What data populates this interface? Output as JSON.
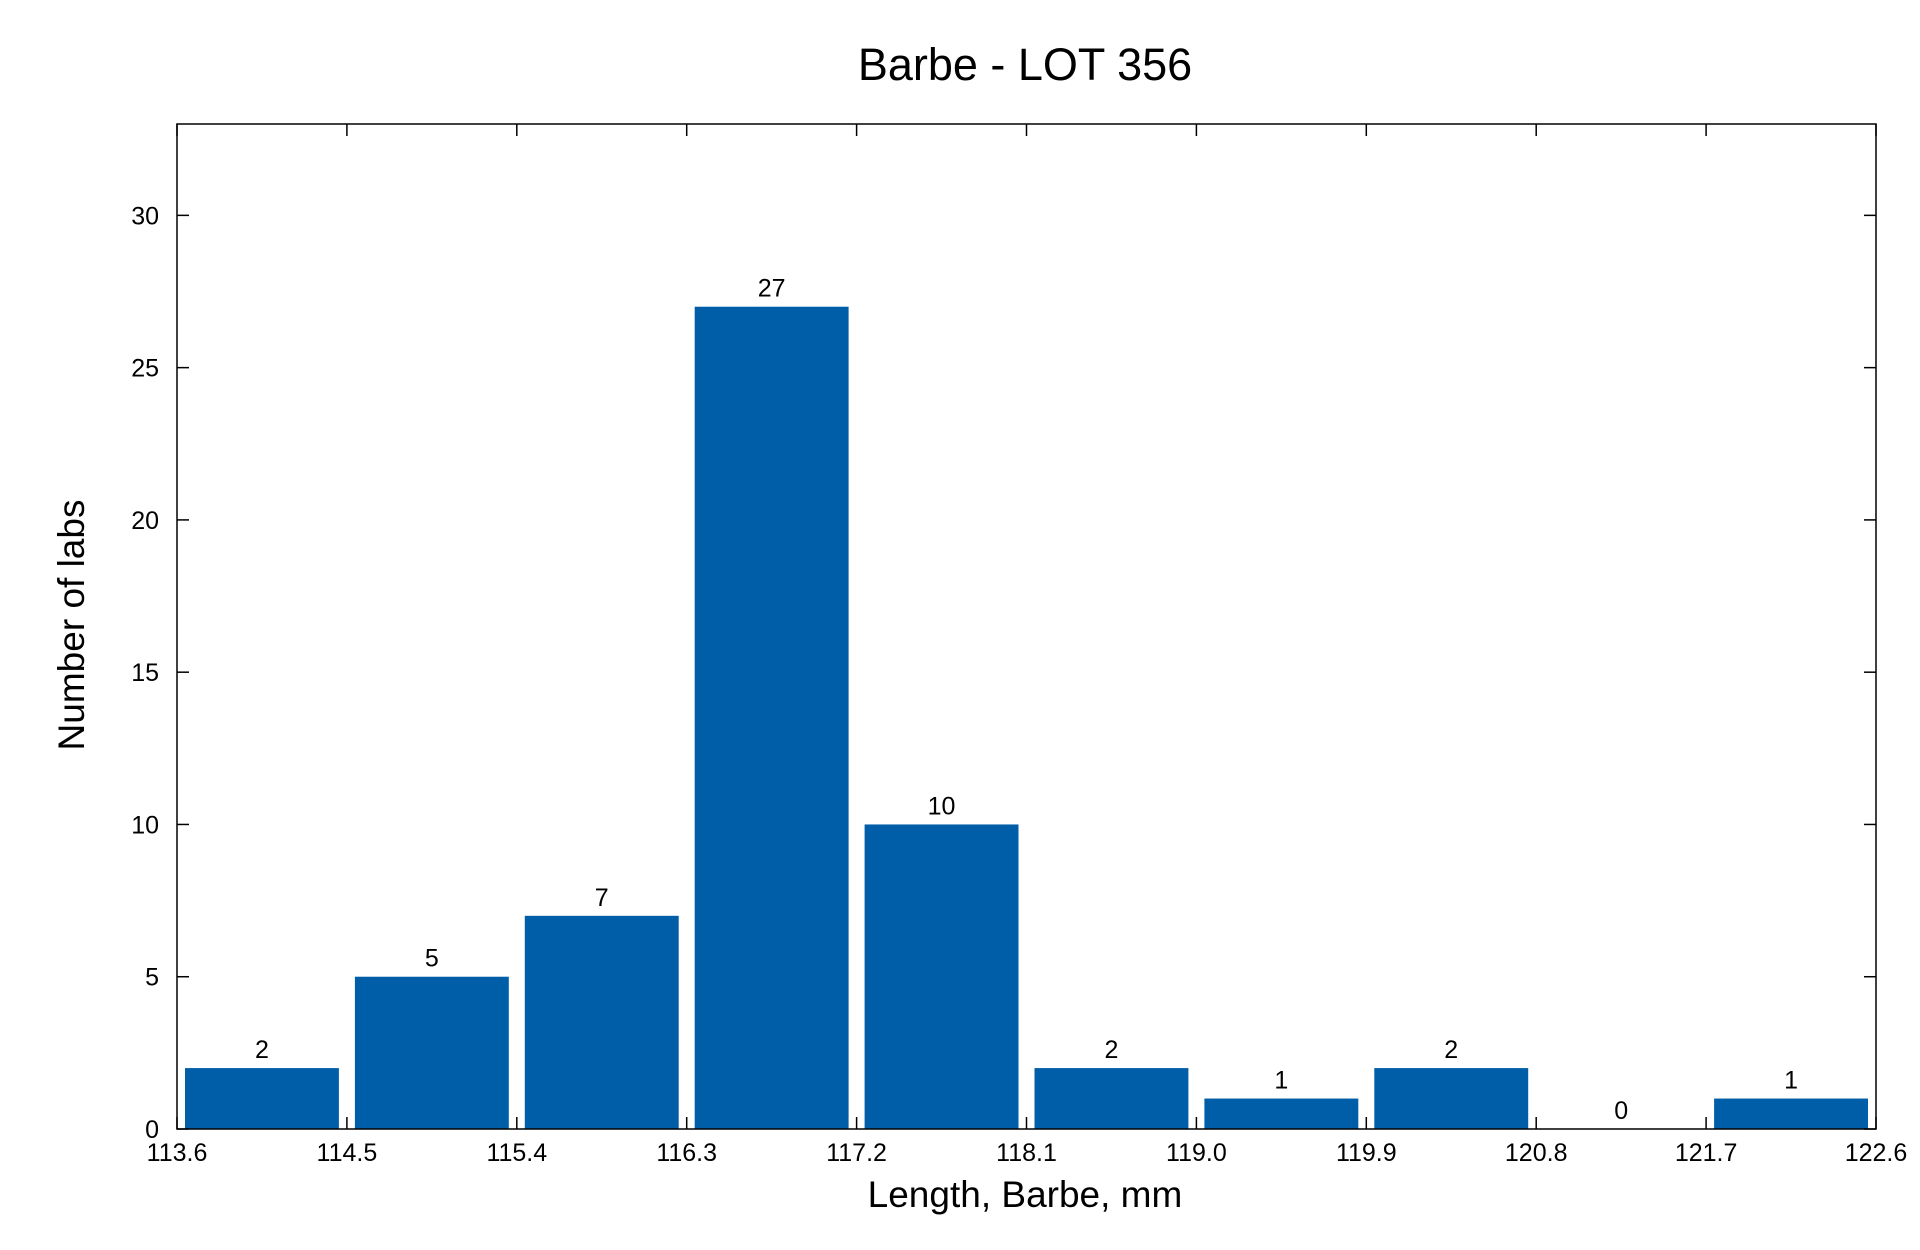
{
  "chart_data": {
    "type": "bar",
    "title": "Barbe - LOT 356",
    "xlabel": "Length, Barbe, mm",
    "ylabel": "Number of labs",
    "bin_edges": [
      "113.6",
      "114.5",
      "115.4",
      "116.3",
      "117.2",
      "118.1",
      "119.0",
      "119.9",
      "120.8",
      "121.7",
      "122.6"
    ],
    "values": [
      2,
      5,
      7,
      27,
      10,
      2,
      1,
      2,
      0,
      1
    ],
    "xlim": [
      113.6,
      122.6
    ],
    "ylim": [
      0,
      33
    ],
    "yticks": [
      0,
      5,
      10,
      15,
      20,
      25,
      30
    ],
    "bar_color": "#005EA8",
    "grid": false,
    "legend": "none"
  }
}
